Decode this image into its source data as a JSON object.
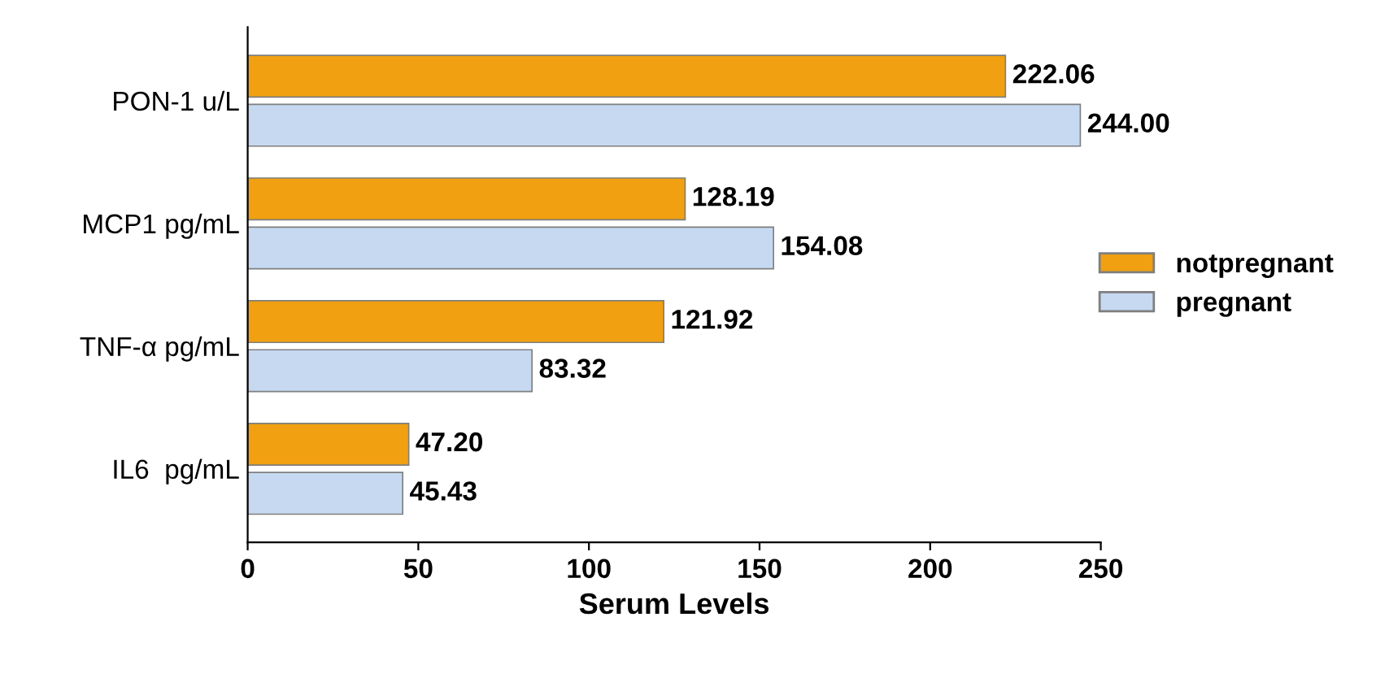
{
  "chart_data": {
    "type": "bar",
    "orientation": "horizontal",
    "categories": [
      "PON-1 u/L",
      "MCP1 pg/mL",
      "TNF-α pg/mL",
      "IL6  pg/mL"
    ],
    "series": [
      {
        "name": "notpregnant",
        "color": "#f0a010",
        "values": [
          222.06,
          128.19,
          121.92,
          47.2
        ],
        "value_labels": [
          "222.06",
          "128.19",
          "121.92",
          "47.20"
        ]
      },
      {
        "name": "pregnant",
        "color": "#c6d9f1",
        "values": [
          244.0,
          154.08,
          83.32,
          45.43
        ],
        "value_labels": [
          "244.00",
          "154.08",
          "83.32",
          "45.43"
        ]
      }
    ],
    "xlabel": "Serum Levels",
    "xlim": [
      0,
      250
    ],
    "xticks": [
      0,
      50,
      100,
      150,
      200,
      250
    ],
    "grid": false,
    "legend": "right"
  }
}
